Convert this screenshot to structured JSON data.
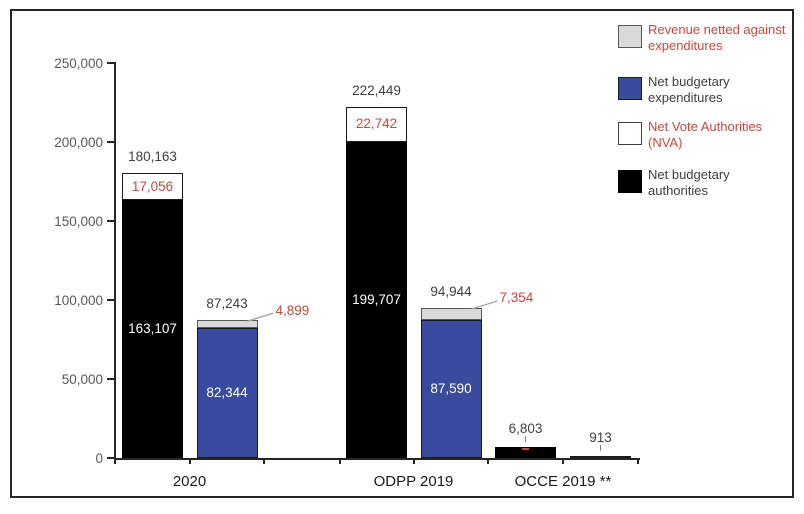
{
  "colors": {
    "accent_blue": "#3a4a9e",
    "revenue_gray": "#d9d9d9",
    "authorities_black": "#000000",
    "nva_white": "#ffffff",
    "red_text": "#c3493f",
    "dark_text": "#404040",
    "axis_dark": "#262626",
    "ytick_text": "#595959",
    "leader_line": "#a8a8a8"
  },
  "chart_data": {
    "type": "bar",
    "stacked": true,
    "title": "",
    "xlabel": "",
    "ylabel": "",
    "ylim": [
      0,
      250000
    ],
    "grid": false,
    "legend_position": "top-right",
    "ytick_values": [
      0,
      50000,
      100000,
      150000,
      200000,
      250000
    ],
    "ytick_labels": [
      "0",
      "50,000",
      "100,000",
      "150,000",
      "200,000",
      "250,000"
    ],
    "legend": [
      {
        "lines": [
          "Revenue netted against",
          "expenditures"
        ],
        "swatch": "#d9d9d9",
        "swatch_border": "#595959",
        "text_color": "#c3493f"
      },
      {
        "lines": [
          "Net budgetary",
          "expenditures"
        ],
        "swatch": "#3a4a9e",
        "swatch_border": "#1a1a1a",
        "text_color": "#404040"
      },
      {
        "lines": [
          "Net Vote Authorities",
          "(NVA)"
        ],
        "swatch": "#ffffff",
        "swatch_border": "#404040",
        "text_color": "#c3493f"
      },
      {
        "lines": [
          "Net budgetary",
          "authorities"
        ],
        "swatch": "#000000",
        "swatch_border": "#000000",
        "text_color": "#404040"
      }
    ],
    "groups": [
      {
        "label": "2020",
        "bars": [
          {
            "total": 180163,
            "total_label": "180,163",
            "segments": [
              {
                "series": "Net budgetary authorities",
                "value": 163107,
                "label": "163,107",
                "color": "#000000",
                "border": "#000000",
                "label_color": "#ffffff",
                "label_pos": "inside"
              },
              {
                "series": "Net Vote Authorities (NVA)",
                "value": 17056,
                "label": "17,056",
                "color": "#ffffff",
                "border": "#1a1a1a",
                "label_color": "#c3493f",
                "label_pos": "inside"
              }
            ]
          },
          {
            "total": 87243,
            "total_label": "87,243",
            "segments": [
              {
                "series": "Net budgetary expenditures",
                "value": 82344,
                "label": "82,344",
                "color": "#3a4a9e",
                "border": "#1a1a1a",
                "label_color": "#ffffff",
                "label_pos": "inside"
              },
              {
                "series": "Revenue netted against expenditures",
                "value": 4899,
                "label": "4,899",
                "color": "#d9d9d9",
                "border": "#595959",
                "label_color": "#c3493f",
                "label_pos": "callout"
              }
            ]
          }
        ]
      },
      {
        "label": "ODPP 2019",
        "bars": [
          {
            "total": 222449,
            "total_label": "222,449",
            "segments": [
              {
                "series": "Net budgetary authorities",
                "value": 199707,
                "label": "199,707",
                "color": "#000000",
                "border": "#000000",
                "label_color": "#ffffff",
                "label_pos": "inside"
              },
              {
                "series": "Net Vote Authorities (NVA)",
                "value": 22742,
                "label": "22,742",
                "color": "#ffffff",
                "border": "#1a1a1a",
                "label_color": "#c3493f",
                "label_pos": "inside"
              }
            ]
          },
          {
            "total": 94944,
            "total_label": "94,944",
            "segments": [
              {
                "series": "Net budgetary expenditures",
                "value": 87590,
                "label": "87,590",
                "color": "#3a4a9e",
                "border": "#1a1a1a",
                "label_color": "#ffffff",
                "label_pos": "inside"
              },
              {
                "series": "Revenue netted against expenditures",
                "value": 7354,
                "label": "7,354",
                "color": "#d9d9d9",
                "border": "#595959",
                "label_color": "#c3493f",
                "label_pos": "callout"
              }
            ]
          }
        ]
      },
      {
        "label": "OCCE 2019 **",
        "bars": [
          {
            "total": 6803,
            "total_label": "6,803",
            "leader": true,
            "red_mark": true,
            "segments": [
              {
                "series": "Net budgetary authorities",
                "value": 6803,
                "label": "",
                "color": "#000000",
                "border": "#000000",
                "label_color": "#ffffff",
                "label_pos": "none"
              }
            ]
          },
          {
            "total": 913,
            "total_label": "913",
            "leader": true,
            "segments": [
              {
                "series": "Net budgetary expenditures",
                "value": 913,
                "label": "",
                "color": "#1a1a1a",
                "border": "#1a1a1a",
                "label_color": "#ffffff",
                "label_pos": "none"
              }
            ]
          }
        ]
      }
    ]
  }
}
